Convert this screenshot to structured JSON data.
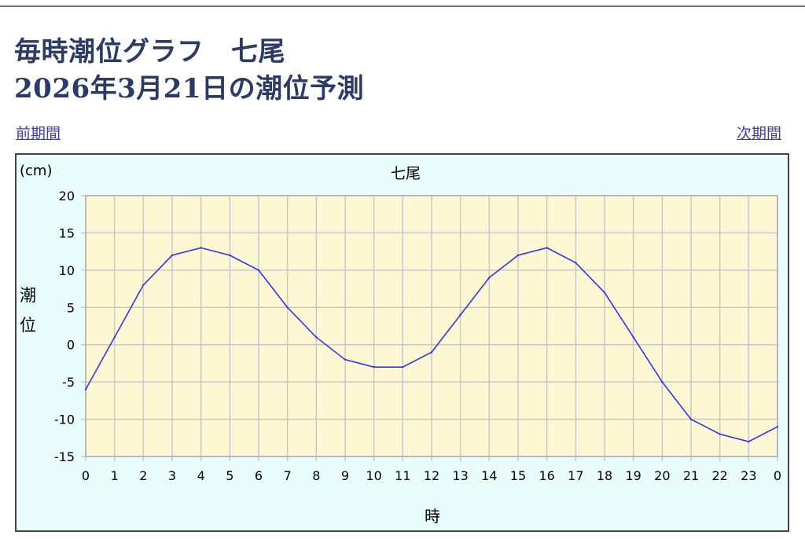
{
  "header": {
    "title_line1": "毎時潮位グラフ　七尾",
    "title_line2": "2026年3月21日の潮位予測"
  },
  "nav": {
    "prev_label": "前期間",
    "next_label": "次期間"
  },
  "colors": {
    "title": "#2b3a67",
    "link": "#3c3caa",
    "chart_background": "#e9fdfd",
    "plot_background": "#fdf8d3",
    "grid": "#c8c8c8",
    "line": "#3333ee"
  },
  "chart_data": {
    "type": "line",
    "title": "七尾",
    "unit_label": "(cm)",
    "ylabel": "潮位",
    "xlabel": "時",
    "x": [
      "0",
      "1",
      "2",
      "3",
      "4",
      "5",
      "6",
      "7",
      "8",
      "9",
      "10",
      "11",
      "12",
      "13",
      "14",
      "15",
      "16",
      "17",
      "18",
      "19",
      "20",
      "21",
      "22",
      "23",
      "0"
    ],
    "series": [
      {
        "values": [
          -6,
          1,
          8,
          12,
          13,
          12,
          10,
          5,
          1,
          -2,
          -3,
          -3,
          -1,
          4,
          9,
          12,
          13,
          11,
          7,
          1,
          -5,
          -10,
          -12,
          -13,
          -11
        ]
      }
    ],
    "ylim": [
      -15,
      20
    ],
    "yticks": [
      20,
      15,
      10,
      5,
      0,
      -5,
      -10,
      -15
    ],
    "grid": true
  }
}
